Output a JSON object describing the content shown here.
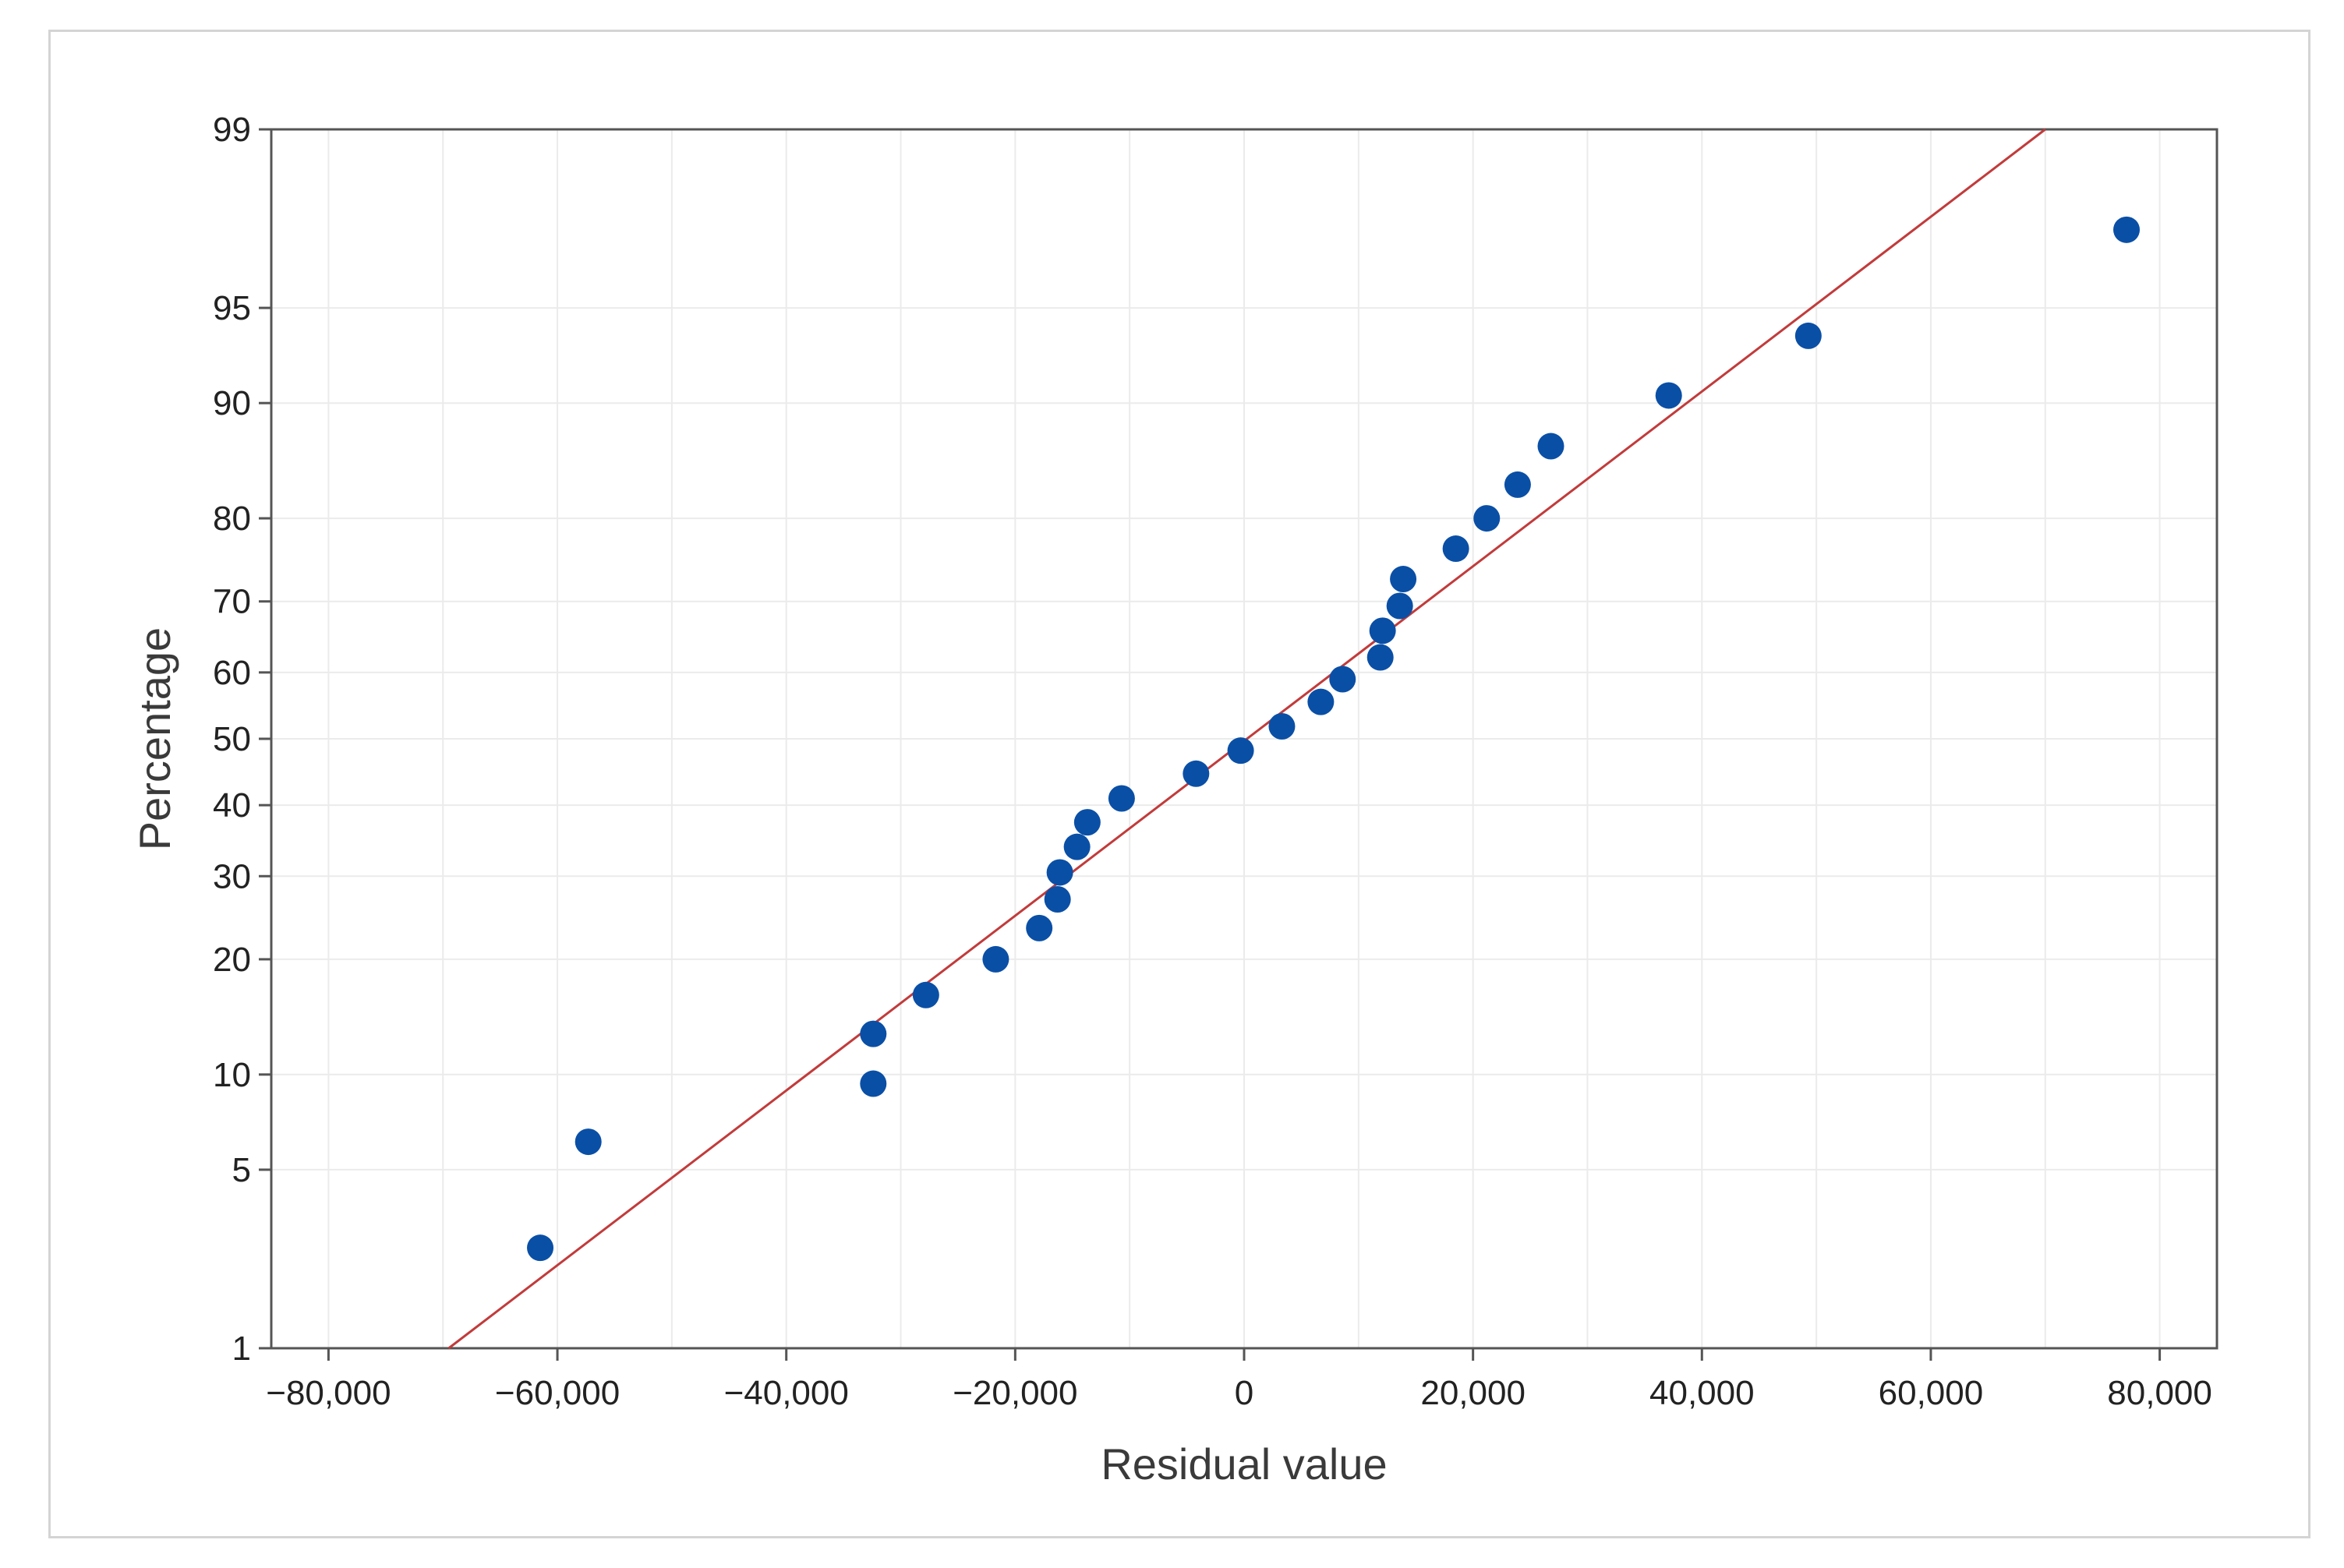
{
  "chart_data": {
    "type": "scatter",
    "title": "",
    "xlabel": "Residual value",
    "ylabel": "Percentage",
    "x_scale": "linear",
    "y_scale": "normal-probability",
    "xlim": [
      -85000,
      85000
    ],
    "ylim": [
      1,
      99
    ],
    "x_ticks": [
      -80000,
      -60000,
      -40000,
      -20000,
      0,
      20000,
      40000,
      60000,
      80000
    ],
    "x_tick_labels": [
      "−80,000",
      "−60,000",
      "−40,000",
      "−20,000",
      "0",
      "20,000",
      "40,000",
      "60,000",
      "80,000"
    ],
    "y_ticks": [
      1,
      5,
      10,
      20,
      30,
      40,
      50,
      60,
      70,
      80,
      90,
      95,
      99
    ],
    "y_tick_labels": [
      "1",
      "5",
      "10",
      "20",
      "30",
      "40",
      "50",
      "60",
      "70",
      "80",
      "90",
      "95",
      "99"
    ],
    "grid": true,
    "points": [
      {
        "x": -61500,
        "y": 2.6
      },
      {
        "x": -57300,
        "y": 6.2
      },
      {
        "x": -32400,
        "y": 9.4
      },
      {
        "x": -32400,
        "y": 13.0
      },
      {
        "x": -27800,
        "y": 16.4
      },
      {
        "x": -21700,
        "y": 20.0
      },
      {
        "x": -17900,
        "y": 23.5
      },
      {
        "x": -16300,
        "y": 27.0
      },
      {
        "x": -16100,
        "y": 30.5
      },
      {
        "x": -14600,
        "y": 34.0
      },
      {
        "x": -13700,
        "y": 37.5
      },
      {
        "x": -10700,
        "y": 41.0
      },
      {
        "x": -4200,
        "y": 44.7
      },
      {
        "x": -300,
        "y": 48.2
      },
      {
        "x": 3300,
        "y": 51.9
      },
      {
        "x": 6700,
        "y": 55.6
      },
      {
        "x": 8600,
        "y": 59.0
      },
      {
        "x": 11900,
        "y": 62.2
      },
      {
        "x": 12100,
        "y": 66.0
      },
      {
        "x": 13600,
        "y": 69.4
      },
      {
        "x": 13900,
        "y": 72.9
      },
      {
        "x": 18500,
        "y": 76.6
      },
      {
        "x": 21200,
        "y": 80.0
      },
      {
        "x": 23900,
        "y": 83.4
      },
      {
        "x": 26800,
        "y": 86.8
      },
      {
        "x": 37100,
        "y": 90.5
      },
      {
        "x": 49300,
        "y": 93.8
      },
      {
        "x": 77100,
        "y": 97.4
      }
    ],
    "fit_line": {
      "x1": -69500,
      "y1": 1,
      "x2": 70000,
      "y2": 99
    },
    "colors": {
      "points": "#0a4fa6",
      "fit_line": "#c23b3b",
      "grid": "#ebebeb",
      "axis": "#555555"
    }
  }
}
